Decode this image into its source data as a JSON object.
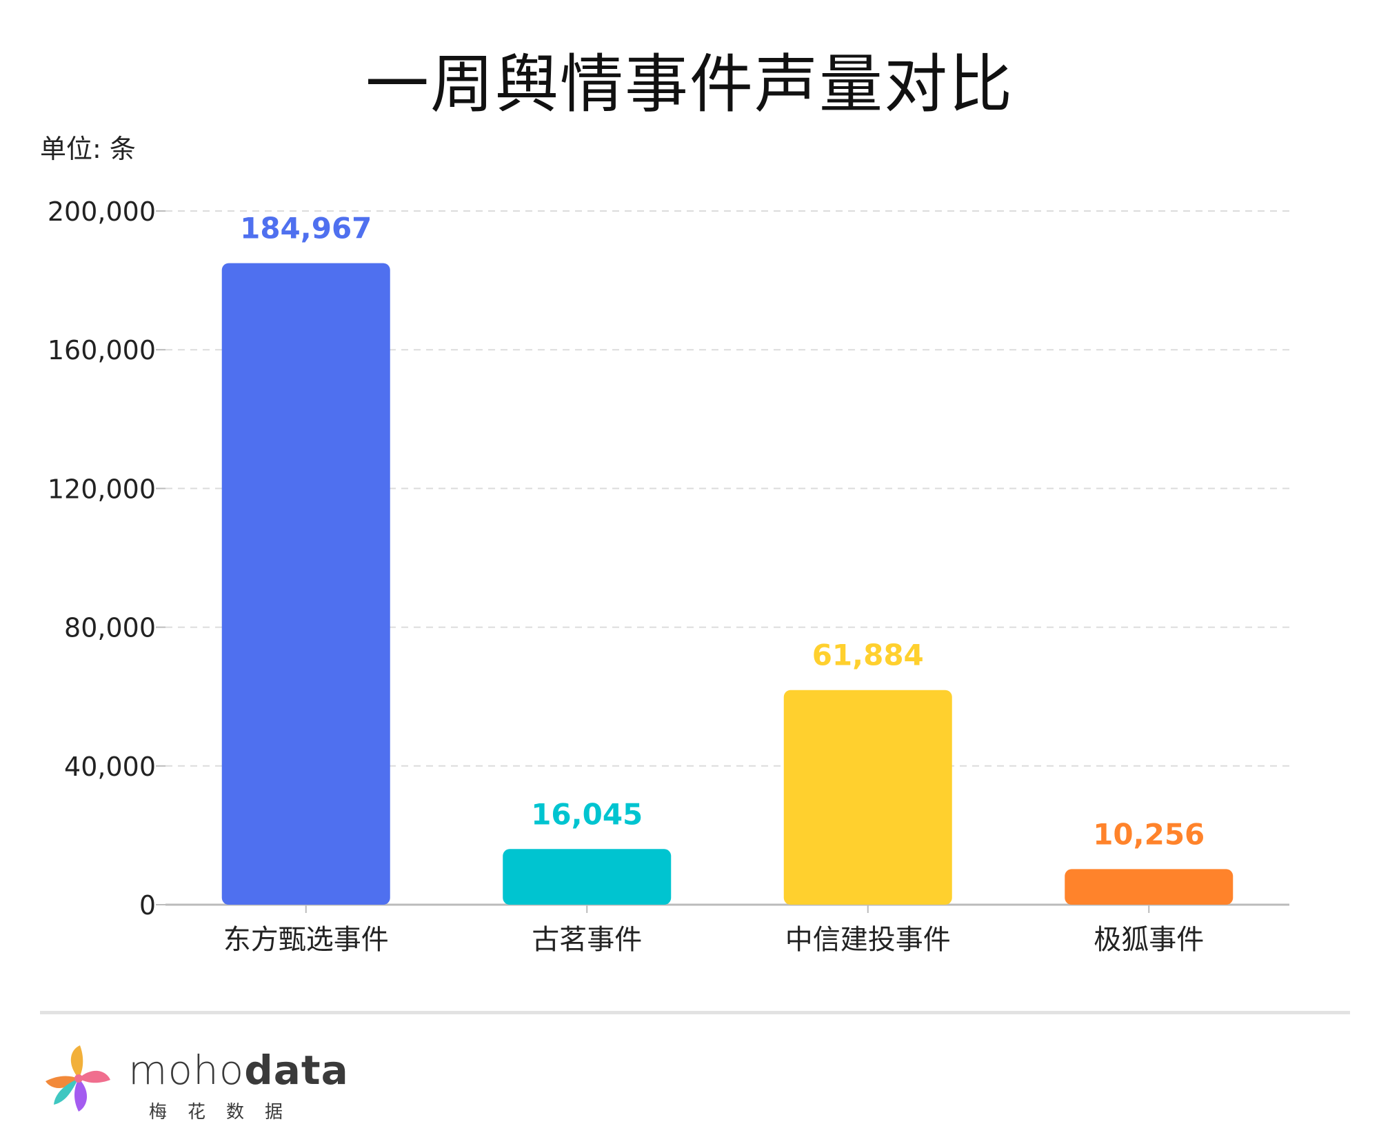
{
  "title": "一周舆情事件声量对比",
  "unit_label": "单位: 条",
  "chart_data": {
    "type": "bar",
    "categories": [
      "东方甄选事件",
      "古茗事件",
      "中信建投事件",
      "极狐事件"
    ],
    "values": [
      184967,
      16045,
      61884,
      10256
    ],
    "value_labels": [
      "184,967",
      "16,045",
      "61,884",
      "10,256"
    ],
    "colors": [
      "#4F70EF",
      "#00C4D0",
      "#FFD02E",
      "#FF832B"
    ],
    "yticks": [
      0,
      40000,
      80000,
      120000,
      160000,
      200000
    ],
    "ytick_labels": [
      "0",
      "40,000",
      "80,000",
      "120,000",
      "160,000",
      "200,000"
    ],
    "ylim": [
      0,
      200000
    ],
    "grid": true
  },
  "brand": {
    "name_light": "moho",
    "name_bold": "data",
    "subtitle": "梅花数据"
  }
}
